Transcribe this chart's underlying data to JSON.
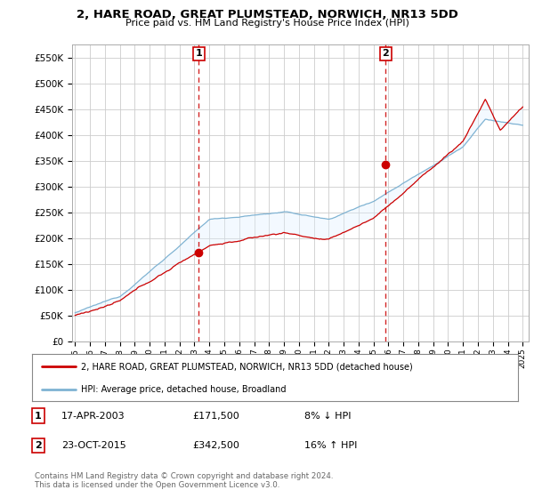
{
  "title": "2, HARE ROAD, GREAT PLUMSTEAD, NORWICH, NR13 5DD",
  "subtitle": "Price paid vs. HM Land Registry's House Price Index (HPI)",
  "ylim": [
    0,
    575000
  ],
  "yticks": [
    0,
    50000,
    100000,
    150000,
    200000,
    250000,
    300000,
    350000,
    400000,
    450000,
    500000,
    550000
  ],
  "ytick_labels": [
    "£0",
    "£50K",
    "£100K",
    "£150K",
    "£200K",
    "£250K",
    "£300K",
    "£350K",
    "£400K",
    "£450K",
    "£500K",
    "£550K"
  ],
  "sale1_date": 2003.29,
  "sale1_price": 171500,
  "sale1_info": "17-APR-2003",
  "sale1_amount": "£171,500",
  "sale1_hpi": "8% ↓ HPI",
  "sale2_date": 2015.82,
  "sale2_price": 342500,
  "sale2_info": "23-OCT-2015",
  "sale2_amount": "£342,500",
  "sale2_hpi": "16% ↑ HPI",
  "line_color_sold": "#cc0000",
  "line_color_hpi": "#7fb3d3",
  "fill_color": "#ddeeff",
  "legend_sold": "2, HARE ROAD, GREAT PLUMSTEAD, NORWICH, NR13 5DD (detached house)",
  "legend_hpi": "HPI: Average price, detached house, Broadland",
  "footer": "Contains HM Land Registry data © Crown copyright and database right 2024.\nThis data is licensed under the Open Government Licence v3.0.",
  "background_color": "#ffffff",
  "grid_color": "#cccccc"
}
